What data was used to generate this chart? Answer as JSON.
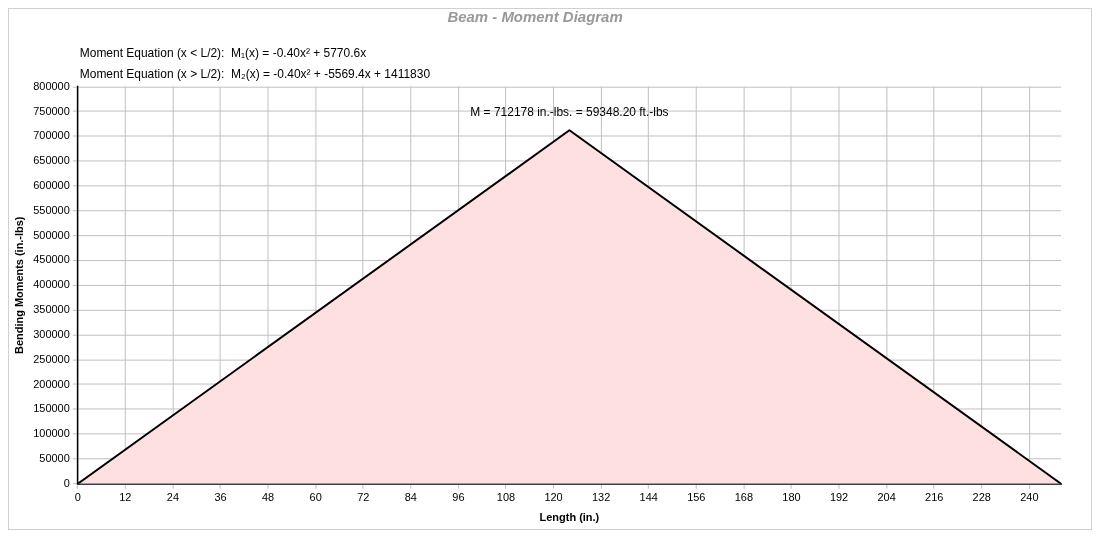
{
  "chart_data": {
    "type": "area",
    "title": "Beam - Moment Diagram",
    "xlabel": "Length (in.)",
    "ylabel": "Bending Moments (in.-lbs)",
    "x": [
      0,
      124,
      248
    ],
    "series": [
      {
        "color": "#ffe0e0",
        "values": [
          0,
          712178,
          0
        ]
      }
    ],
    "xlim": [
      0,
      248
    ],
    "xticks": [
      0,
      12,
      24,
      36,
      48,
      60,
      72,
      84,
      96,
      108,
      120,
      132,
      144,
      156,
      168,
      180,
      192,
      204,
      216,
      228,
      240
    ],
    "ylim": [
      0,
      800000
    ],
    "yticks": [
      0,
      50000,
      100000,
      150000,
      200000,
      250000,
      300000,
      350000,
      400000,
      450000,
      500000,
      550000,
      600000,
      650000,
      700000,
      750000,
      800000
    ],
    "grid": true,
    "legend": false,
    "annotations": [
      "Moment Equation (x < L/2):  M₁(x) = -0.40x² + 5770.6x",
      "Moment Equation (x > L/2):  M₂(x) = -0.40x² + -5569.4x + 1411830",
      {
        "text": "M = 712178 in.-lbs. = 59348.20 ft.-lbs",
        "x": 124,
        "y": 712178
      }
    ]
  }
}
